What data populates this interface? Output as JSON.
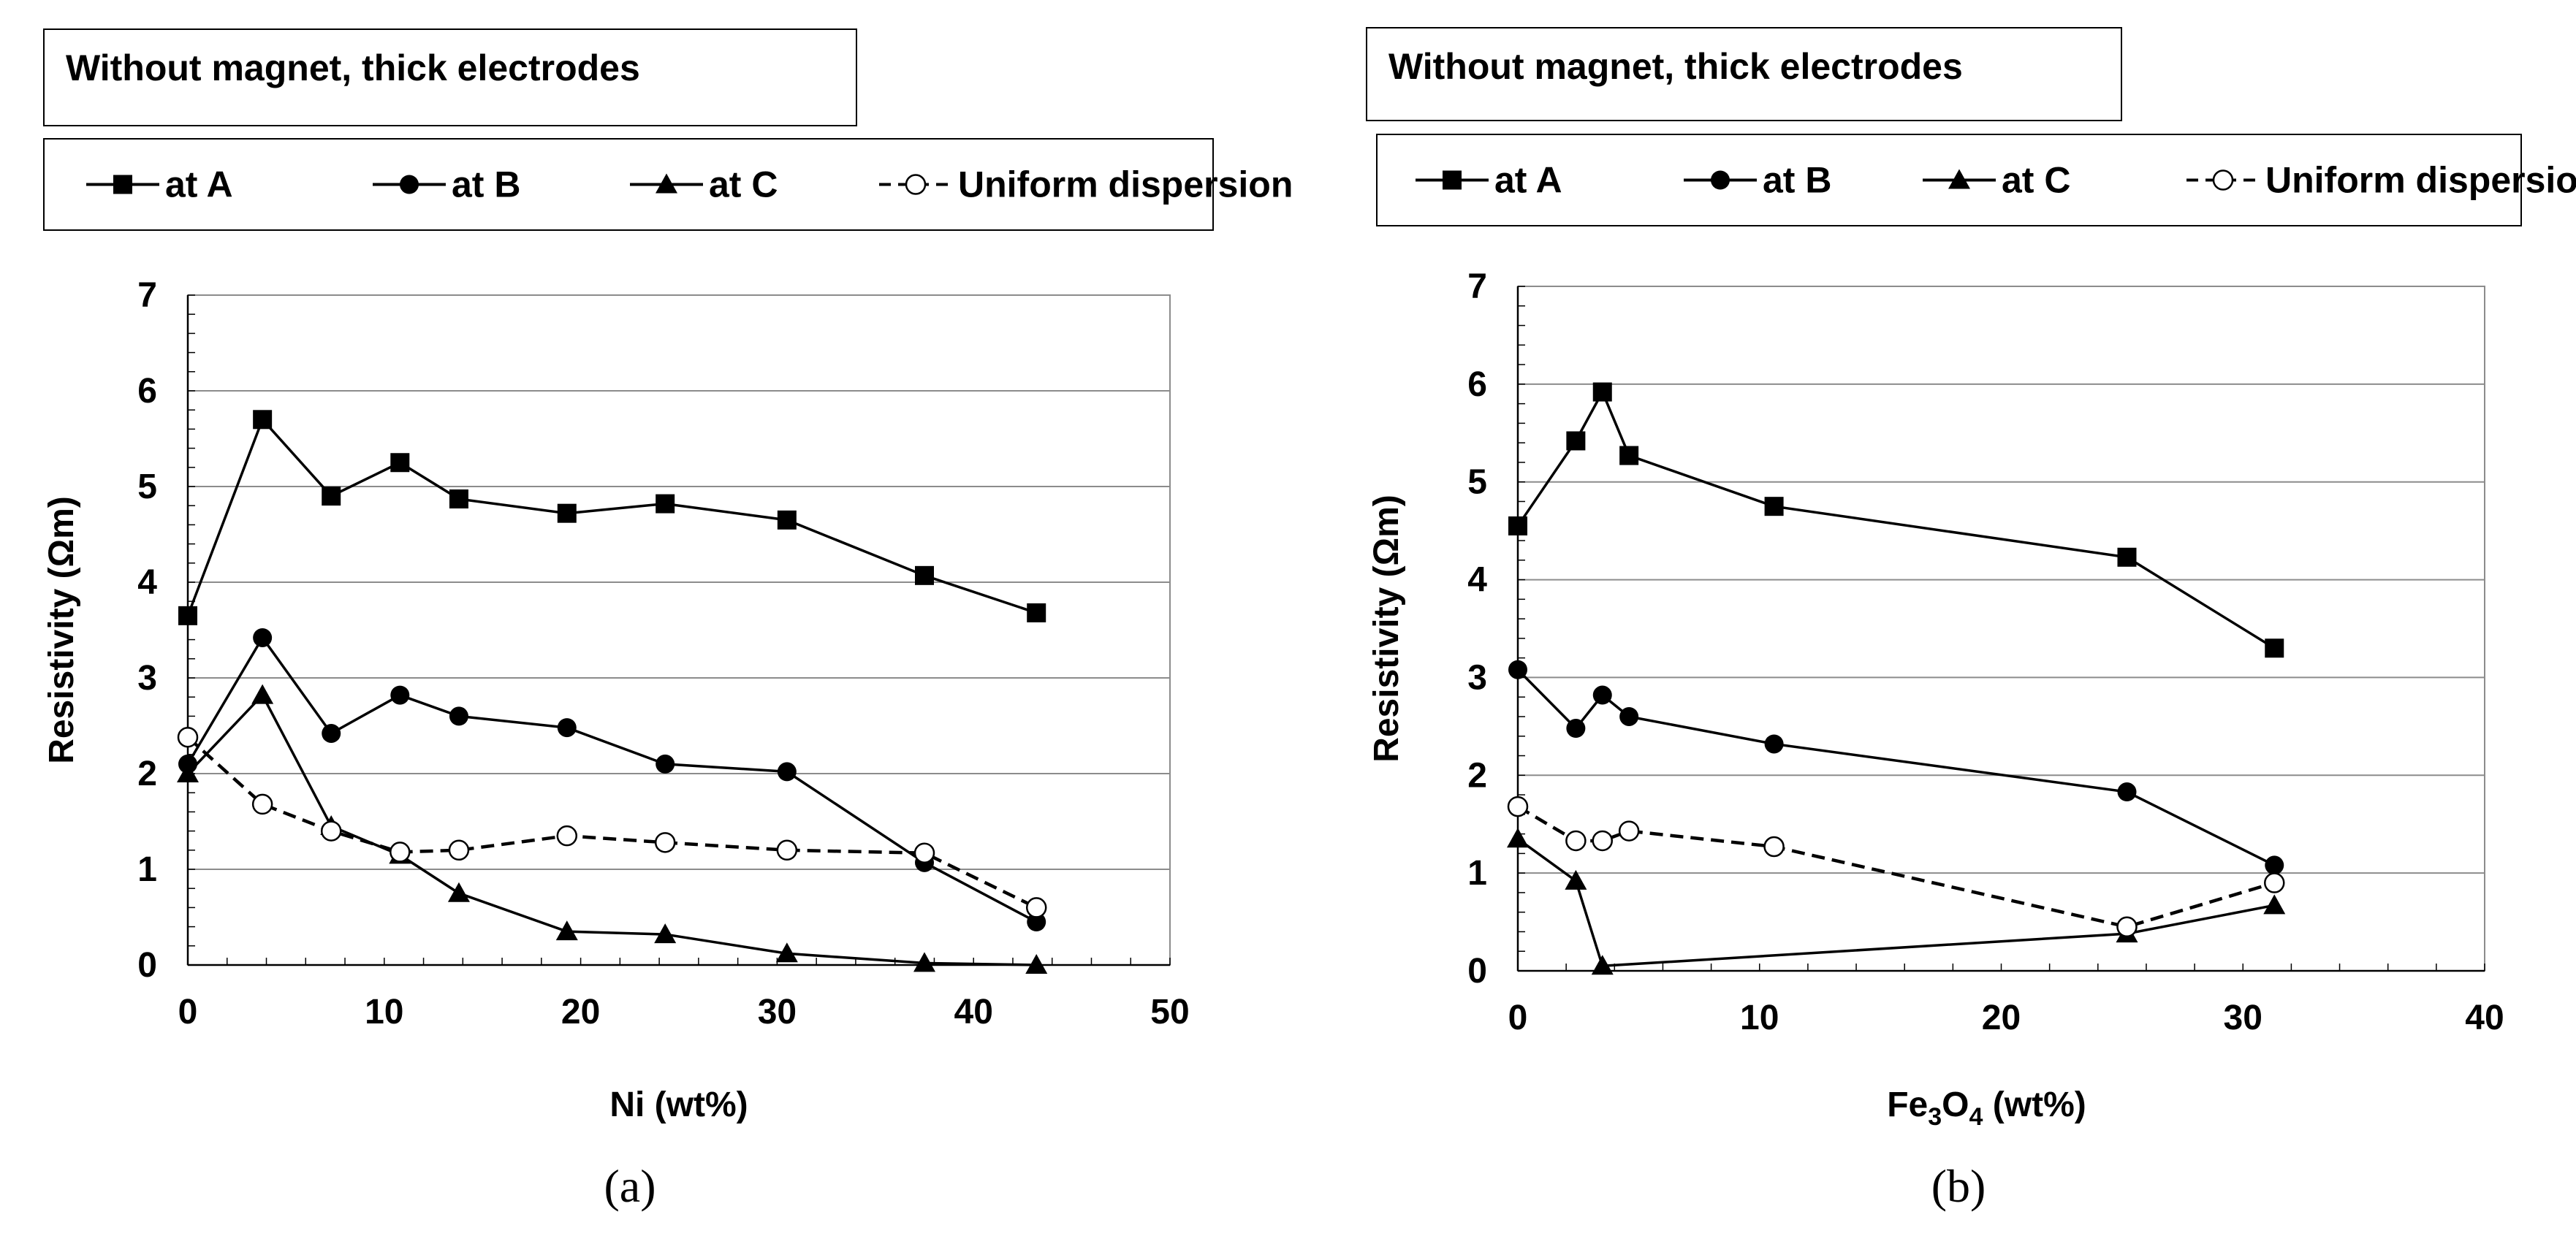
{
  "chart_data": [
    {
      "type": "line",
      "title": "Without magnet, thick electrodes",
      "caption": "(a)",
      "xlabel": "Ni   (wt%)",
      "ylabel": "Resistivity  (Ωm)",
      "xlim": [
        0,
        50
      ],
      "ylim": [
        0,
        7
      ],
      "xticks": [
        0,
        10,
        20,
        30,
        40,
        50
      ],
      "yticks": [
        0,
        1,
        2,
        3,
        4,
        5,
        6,
        7
      ],
      "grid": "horizontal",
      "legend_position": "top",
      "series": [
        {
          "name": "at A",
          "marker": "square",
          "dash": false,
          "x": [
            0,
            3.8,
            7.3,
            10.8,
            13.8,
            19.3,
            24.3,
            30.5,
            37.5,
            43.2
          ],
          "y": [
            3.65,
            5.7,
            4.9,
            5.25,
            4.87,
            4.72,
            4.82,
            4.65,
            4.07,
            3.68
          ]
        },
        {
          "name": "at B",
          "marker": "circle",
          "dash": false,
          "x": [
            0,
            3.8,
            7.3,
            10.8,
            13.8,
            19.3,
            24.3,
            30.5,
            37.5,
            43.2
          ],
          "y": [
            2.1,
            3.42,
            2.42,
            2.82,
            2.6,
            2.48,
            2.1,
            2.02,
            1.07,
            0.45
          ]
        },
        {
          "name": "at C",
          "marker": "triangle",
          "dash": false,
          "x": [
            0,
            3.8,
            7.3,
            10.8,
            13.8,
            19.3,
            24.3,
            30.5,
            37.5,
            43.2
          ],
          "y": [
            2.0,
            2.82,
            1.45,
            1.15,
            0.75,
            0.35,
            0.32,
            0.12,
            0.02,
            0.0
          ]
        },
        {
          "name": "Uniform dispersion",
          "marker": "open-circle",
          "dash": true,
          "x": [
            0,
            3.8,
            7.3,
            10.8,
            13.8,
            19.3,
            24.3,
            30.5,
            37.5,
            43.2
          ],
          "y": [
            2.38,
            1.68,
            1.4,
            1.18,
            1.2,
            1.35,
            1.28,
            1.2,
            1.17,
            0.6
          ]
        }
      ]
    },
    {
      "type": "line",
      "title": "Without magnet, thick electrodes",
      "caption": "(b)",
      "xlabel_main": "Fe",
      "xlabel_sub1": "3",
      "xlabel_mid": "O",
      "xlabel_sub2": "4",
      "xlabel_unit": "  (wt%)",
      "ylabel": "Resistivity  (Ωm)",
      "xlim": [
        0,
        40
      ],
      "ylim": [
        0,
        7
      ],
      "xticks": [
        0,
        10,
        20,
        30,
        40
      ],
      "yticks": [
        0,
        1,
        2,
        3,
        4,
        5,
        6,
        7
      ],
      "grid": "horizontal",
      "legend_position": "top",
      "series": [
        {
          "name": "at A",
          "marker": "square",
          "dash": false,
          "x": [
            0,
            2.4,
            3.5,
            4.6,
            10.6,
            25.2,
            31.3
          ],
          "y": [
            4.55,
            5.42,
            5.92,
            5.27,
            4.75,
            4.23,
            3.3
          ]
        },
        {
          "name": "at B",
          "marker": "circle",
          "dash": false,
          "x": [
            0,
            2.4,
            3.5,
            4.6,
            10.6,
            25.2,
            31.3
          ],
          "y": [
            3.08,
            2.48,
            2.82,
            2.6,
            2.32,
            1.83,
            1.08
          ]
        },
        {
          "name": "at C",
          "marker": "triangle",
          "dash": false,
          "x": [
            0,
            2.4,
            3.5,
            25.2,
            31.3
          ],
          "y": [
            1.35,
            0.92,
            0.05,
            0.38,
            0.67
          ]
        },
        {
          "name": "Uniform dispersion",
          "marker": "open-circle",
          "dash": true,
          "x": [
            0,
            2.4,
            3.5,
            4.6,
            10.6,
            25.2,
            31.3
          ],
          "y": [
            1.68,
            1.33,
            1.33,
            1.43,
            1.27,
            0.45,
            0.9
          ]
        }
      ]
    }
  ]
}
